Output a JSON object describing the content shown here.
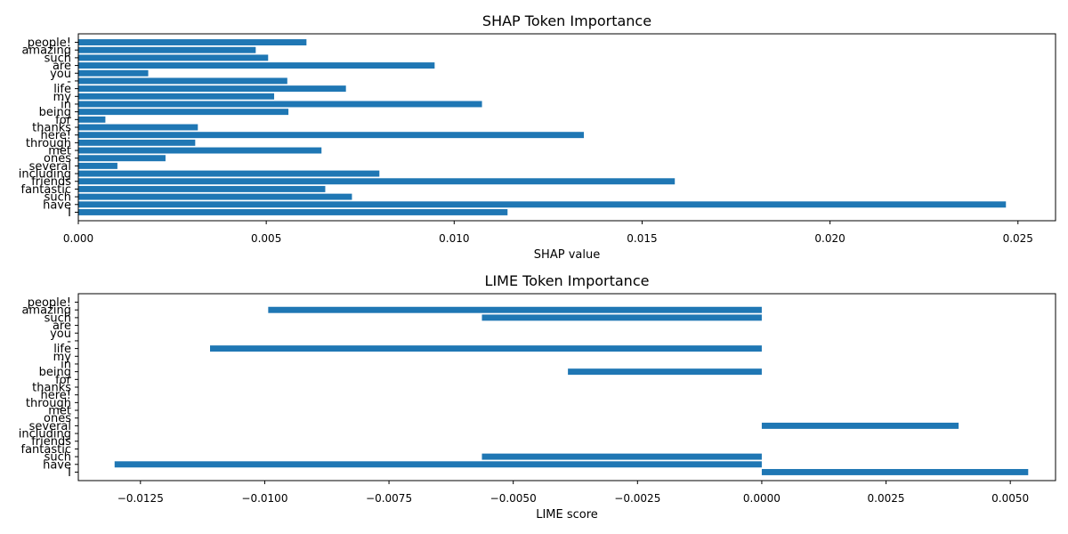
{
  "chart_data": [
    {
      "type": "bar",
      "orientation": "horizontal",
      "title": "SHAP Token Importance",
      "xlabel": "SHAP value",
      "ylabel": "",
      "xlim": [
        0.0,
        0.026
      ],
      "xticks": [
        "0.000",
        "0.005",
        "0.010",
        "0.015",
        "0.020",
        "0.025"
      ],
      "xtick_values": [
        0.0,
        0.005,
        0.01,
        0.015,
        0.02,
        0.025
      ],
      "bar_color": "#1f77b4",
      "grid": false,
      "legend": "none",
      "categories": [
        "I",
        "have",
        "such",
        "fantastic",
        "friends",
        "including",
        "several",
        "ones",
        "met",
        "through",
        "here!",
        "thanks",
        "for",
        "being",
        "in",
        "my",
        "life",
        "-",
        "you",
        "are",
        "such",
        "amazing",
        "people!"
      ],
      "values": [
        0.01142,
        0.02468,
        0.00728,
        0.00657,
        0.01587,
        0.00801,
        0.00104,
        0.00232,
        0.00647,
        0.00311,
        0.01345,
        0.00318,
        0.00072,
        0.00559,
        0.01074,
        0.00521,
        0.00712,
        0.00556,
        0.00186,
        0.00948,
        0.00505,
        0.00472,
        0.00607
      ]
    },
    {
      "type": "bar",
      "orientation": "horizontal",
      "title": "LIME Token Importance",
      "xlabel": "LIME score",
      "ylabel": "",
      "xlim": [
        -0.01375,
        0.00591
      ],
      "xticks": [
        "−0.0125",
        "−0.0100",
        "−0.0075",
        "−0.0050",
        "−0.0025",
        "0.0000",
        "0.0025",
        "0.0050"
      ],
      "xtick_values": [
        -0.0125,
        -0.01,
        -0.0075,
        -0.005,
        -0.0025,
        0.0,
        0.0025,
        0.005
      ],
      "bar_color": "#1f77b4",
      "grid": false,
      "legend": "none",
      "categories": [
        "I",
        "have",
        "such",
        "fantastic",
        "friends",
        "including",
        "several",
        "ones",
        "met",
        "through",
        "here!",
        "thanks",
        "for",
        "being",
        "in",
        "my",
        "life",
        "-",
        "you",
        "are",
        "such",
        "amazing",
        "people!"
      ],
      "values": [
        0.00536,
        -0.01302,
        -0.00563,
        0,
        0,
        0,
        0.00396,
        0,
        0,
        0,
        0,
        0,
        0,
        -0.0039,
        0,
        0,
        -0.0111,
        0,
        0,
        0,
        -0.00563,
        -0.00993,
        0
      ]
    }
  ]
}
